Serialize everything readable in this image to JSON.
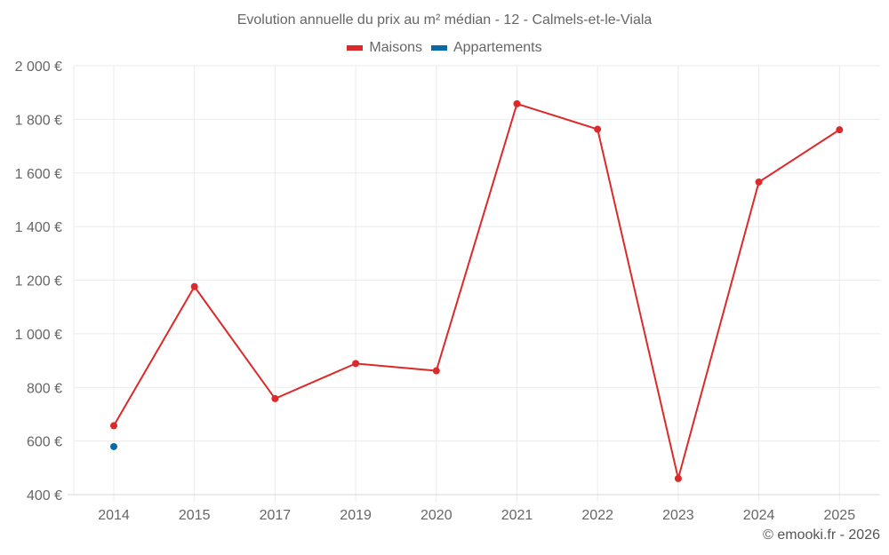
{
  "chart": {
    "title": "Evolution annuelle du prix au m² médian - 12 - Calmels-et-le-Viala",
    "legend": [
      {
        "label": "Maisons",
        "color": "#dc2a2a"
      },
      {
        "label": "Appartements",
        "color": "#0a6aa8"
      }
    ],
    "credit": "© emooki.fr - 2026"
  },
  "chart_data": {
    "type": "line",
    "title": "Evolution annuelle du prix au m² médian - 12 - Calmels-et-le-Viala",
    "xlabel": "",
    "ylabel": "",
    "categories": [
      "2014",
      "2015",
      "2017",
      "2019",
      "2020",
      "2021",
      "2022",
      "2023",
      "2024",
      "2025"
    ],
    "series": [
      {
        "name": "Maisons",
        "color": "#dc2a2a",
        "values": [
          657,
          1176,
          758,
          889,
          862,
          1858,
          1763,
          460,
          1566,
          1761
        ]
      },
      {
        "name": "Appartements",
        "color": "#0a6aa8",
        "values": [
          579,
          null,
          null,
          null,
          null,
          null,
          null,
          null,
          null,
          null
        ]
      }
    ],
    "ylim": [
      400,
      2000
    ],
    "yticks": [
      400,
      600,
      800,
      1000,
      1200,
      1400,
      1600,
      1800,
      2000
    ],
    "ytick_labels": [
      "400 €",
      "600 €",
      "800 €",
      "1 000 €",
      "1 200 €",
      "1 400 €",
      "1 600 €",
      "1 800 €",
      "2 000 €"
    ],
    "grid": true,
    "legend_position": "top"
  }
}
